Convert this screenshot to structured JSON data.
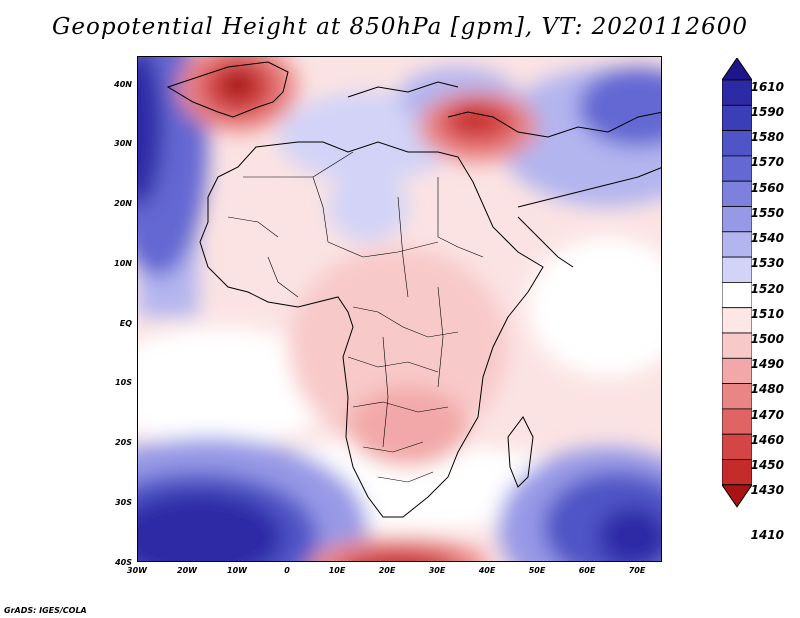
{
  "title": "Geopotential Height at 850hPa [gpm], VT: 2020112600",
  "credit": "GrADS: IGES/COLA",
  "lat_labels": [
    "40N",
    "30N",
    "20N",
    "10N",
    "EQ",
    "10S",
    "20S",
    "30S",
    "40S"
  ],
  "lon_labels": [
    "30W",
    "20W",
    "10W",
    "0",
    "10E",
    "20E",
    "30E",
    "40E",
    "50E",
    "60E",
    "70E"
  ],
  "colorbar": {
    "labels": [
      "1610",
      "1590",
      "1580",
      "1570",
      "1560",
      "1550",
      "1540",
      "1530",
      "1520",
      "1510",
      "1500",
      "1490",
      "1480",
      "1470",
      "1460",
      "1450",
      "1430",
      "1410"
    ],
    "colors": [
      "#20148c",
      "#2d2aa6",
      "#3a3fb7",
      "#4f55c6",
      "#6468d2",
      "#7d80dc",
      "#9799e6",
      "#b3b5ef",
      "#d2d3f7",
      "#ffffff",
      "#fde6e6",
      "#f8c9c9",
      "#f2a8a8",
      "#ea8585",
      "#e06464",
      "#d44646",
      "#c42c2c",
      "#a91313"
    ]
  },
  "map": {
    "lon_range": [
      -30,
      75
    ],
    "lat_range": [
      -40,
      45
    ]
  }
}
